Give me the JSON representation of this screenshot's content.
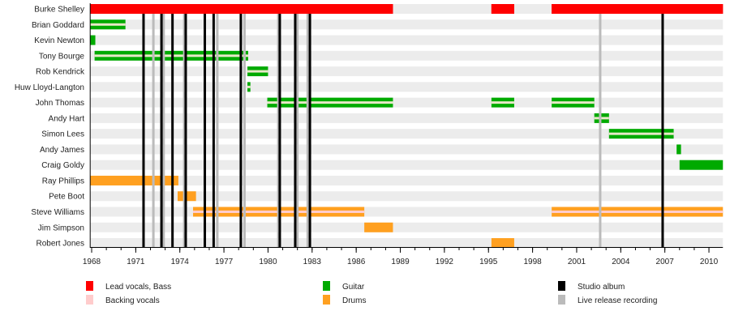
{
  "chart_data": {
    "type": "timeline",
    "xlim": [
      1967.9,
      2010.95
    ],
    "x_ticks": [
      1968,
      1971,
      1974,
      1977,
      1980,
      1983,
      1986,
      1989,
      1992,
      1995,
      1998,
      2001,
      2004,
      2007,
      2010
    ],
    "minor_tick_step": 1,
    "grid": false,
    "colors": {
      "lead_vocals_bass": "#ff0000",
      "backing_vocals": "#ffcccc",
      "guitar": "#00aa00",
      "drums": "#ffa020",
      "studio_album": "#000000",
      "live_release": "#bbbbbb",
      "row_band": "#ececec"
    },
    "members": [
      {
        "name": "Burke Shelley",
        "segments": [
          {
            "start": 1967.9,
            "end": 1988.5,
            "role": "lead_vocals_bass"
          },
          {
            "start": 1995.2,
            "end": 1996.75,
            "role": "lead_vocals_bass"
          },
          {
            "start": 1999.3,
            "end": 2010.95,
            "role": "lead_vocals_bass"
          }
        ]
      },
      {
        "name": "Brian Goddard",
        "segments": [
          {
            "start": 1967.9,
            "end": 1970.3,
            "role": "guitar",
            "backing": true
          }
        ]
      },
      {
        "name": "Kevin Newton",
        "segments": [
          {
            "start": 1967.9,
            "end": 1968.25,
            "role": "guitar"
          }
        ]
      },
      {
        "name": "Tony Bourge",
        "segments": [
          {
            "start": 1968.2,
            "end": 1978.65,
            "role": "guitar",
            "backing": true
          }
        ]
      },
      {
        "name": "Rob Kendrick",
        "segments": [
          {
            "start": 1978.6,
            "end": 1980.0,
            "role": "guitar",
            "backing": true
          }
        ]
      },
      {
        "name": "Huw Lloyd-Langton",
        "segments": [
          {
            "start": 1978.6,
            "end": 1978.8,
            "role": "guitar",
            "backing": true
          }
        ]
      },
      {
        "name": "John Thomas",
        "segments": [
          {
            "start": 1979.95,
            "end": 1988.5,
            "role": "guitar",
            "backing": true
          },
          {
            "start": 1995.2,
            "end": 1996.75,
            "role": "guitar",
            "backing": true
          },
          {
            "start": 1999.3,
            "end": 2002.2,
            "role": "guitar",
            "backing": true
          }
        ]
      },
      {
        "name": "Andy Hart",
        "segments": [
          {
            "start": 2002.2,
            "end": 2003.2,
            "role": "guitar",
            "backing": true
          }
        ]
      },
      {
        "name": "Simon Lees",
        "segments": [
          {
            "start": 2003.2,
            "end": 2007.6,
            "role": "guitar",
            "backing": true
          }
        ]
      },
      {
        "name": "Andy James",
        "segments": [
          {
            "start": 2007.8,
            "end": 2008.1,
            "role": "guitar"
          }
        ]
      },
      {
        "name": "Craig Goldy",
        "segments": [
          {
            "start": 2008.0,
            "end": 2010.95,
            "role": "guitar"
          }
        ]
      },
      {
        "name": "Ray Phillips",
        "segments": [
          {
            "start": 1967.9,
            "end": 1973.9,
            "role": "drums"
          }
        ]
      },
      {
        "name": "Pete Boot",
        "segments": [
          {
            "start": 1973.85,
            "end": 1975.1,
            "role": "drums"
          }
        ]
      },
      {
        "name": "Steve Williams",
        "segments": [
          {
            "start": 1974.9,
            "end": 1986.55,
            "role": "drums",
            "backing": true
          },
          {
            "start": 1999.3,
            "end": 2010.95,
            "role": "drums",
            "backing": true
          }
        ]
      },
      {
        "name": "Jim Simpson",
        "segments": [
          {
            "start": 1986.55,
            "end": 1988.5,
            "role": "drums"
          }
        ]
      },
      {
        "name": "Robert Jones",
        "segments": [
          {
            "start": 1995.2,
            "end": 1996.75,
            "role": "drums"
          }
        ]
      }
    ],
    "studio_albums": [
      1971.53,
      1972.75,
      1973.5,
      1974.4,
      1975.7,
      1976.3,
      1978.15,
      1980.8,
      1981.85,
      1982.85,
      2006.85
    ],
    "live_releases": [
      1972.2,
      1972.9,
      1974.3,
      1976.55,
      1978.4,
      1980.7,
      1982.0,
      1982.7,
      2002.6
    ],
    "legend": [
      {
        "label": "Lead vocals, Bass",
        "key": "lead_vocals_bass"
      },
      {
        "label": "Backing vocals",
        "key": "backing_vocals"
      },
      {
        "label": "Guitar",
        "key": "guitar"
      },
      {
        "label": "Drums",
        "key": "drums"
      },
      {
        "label": "Studio album",
        "key": "studio_album"
      },
      {
        "label": "Live release recording",
        "key": "live_release"
      }
    ]
  }
}
